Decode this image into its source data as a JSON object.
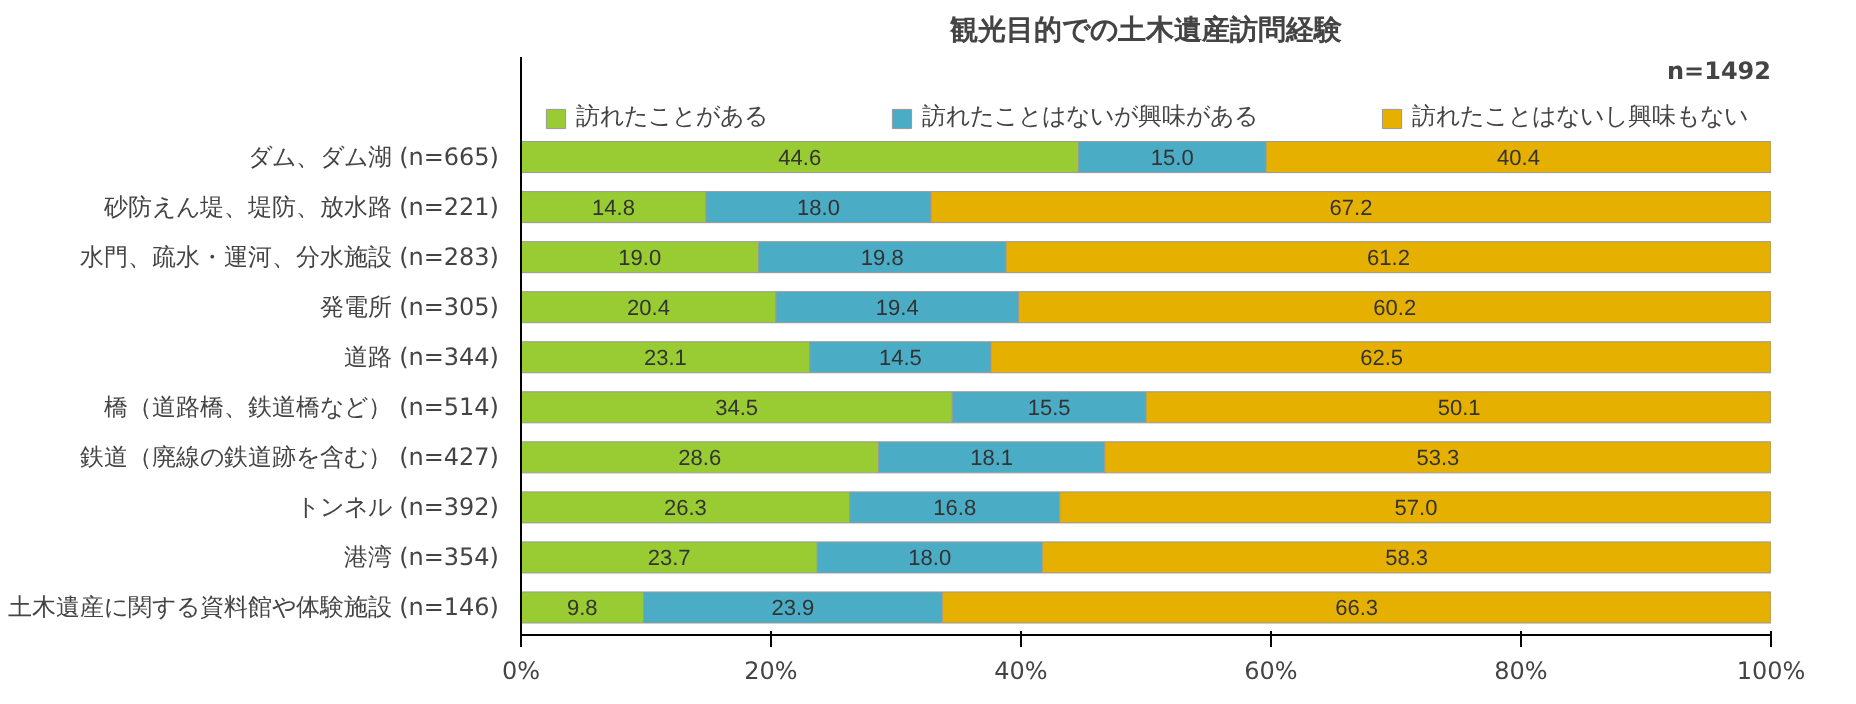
{
  "chart_data": {
    "type": "bar",
    "orientation": "horizontal",
    "stacked": true,
    "title": "観光目的での土木遺産訪問経験",
    "annotations": [
      "n=1492"
    ],
    "categories": [
      "ダム、ダム湖 (n=665)",
      "砂防えん堤、堤防、放水路 (n=221)",
      "水門、疏水・運河、分水施設 (n=283)",
      "発電所 (n=305)",
      "道路 (n=344)",
      "橋（道路橋、鉄道橋など） (n=514)",
      "鉄道（廃線の鉄道跡を含む） (n=427)",
      "トンネル (n=392)",
      "港湾 (n=354)",
      "土木遺産に関する資料館や体験施設 (n=146)"
    ],
    "series": [
      {
        "name": "訪れたことがある",
        "color": "#99cc33",
        "values": [
          44.6,
          14.8,
          19.0,
          20.4,
          23.1,
          34.5,
          28.6,
          26.3,
          23.7,
          9.8
        ],
        "value_labels": [
          "44.6",
          "14.8",
          "19.0",
          "20.4",
          "23.1",
          "34.5",
          "28.6",
          "26.3",
          "23.7",
          "9.8"
        ]
      },
      {
        "name": "訪れたことはないが興味がある",
        "color": "#4bacc6",
        "values": [
          15.0,
          18.0,
          19.8,
          19.4,
          14.5,
          15.5,
          18.1,
          16.8,
          18.0,
          23.9
        ],
        "value_labels": [
          "15.0",
          "18.0",
          "19.8",
          "19.4",
          "14.5",
          "15.5",
          "18.1",
          "16.8",
          "18.0",
          "23.9"
        ]
      },
      {
        "name": "訪れたことはないし興味もない",
        "color": "#e6b000",
        "values": [
          40.4,
          67.2,
          61.2,
          60.2,
          62.5,
          50.1,
          53.3,
          57.0,
          58.3,
          66.3
        ],
        "value_labels": [
          "40.4",
          "67.2",
          "61.2",
          "60.2",
          "62.5",
          "50.1",
          "53.3",
          "57.0",
          "58.3",
          "66.3"
        ]
      }
    ],
    "xlim": [
      0,
      100
    ],
    "xticks": [
      {
        "value": 0,
        "label": "0%"
      },
      {
        "value": 20,
        "label": "20%"
      },
      {
        "value": 40,
        "label": "40%"
      },
      {
        "value": 60,
        "label": "60%"
      },
      {
        "value": 80,
        "label": "80%"
      },
      {
        "value": 100,
        "label": "100%"
      }
    ],
    "legend": "top",
    "grid": false
  }
}
